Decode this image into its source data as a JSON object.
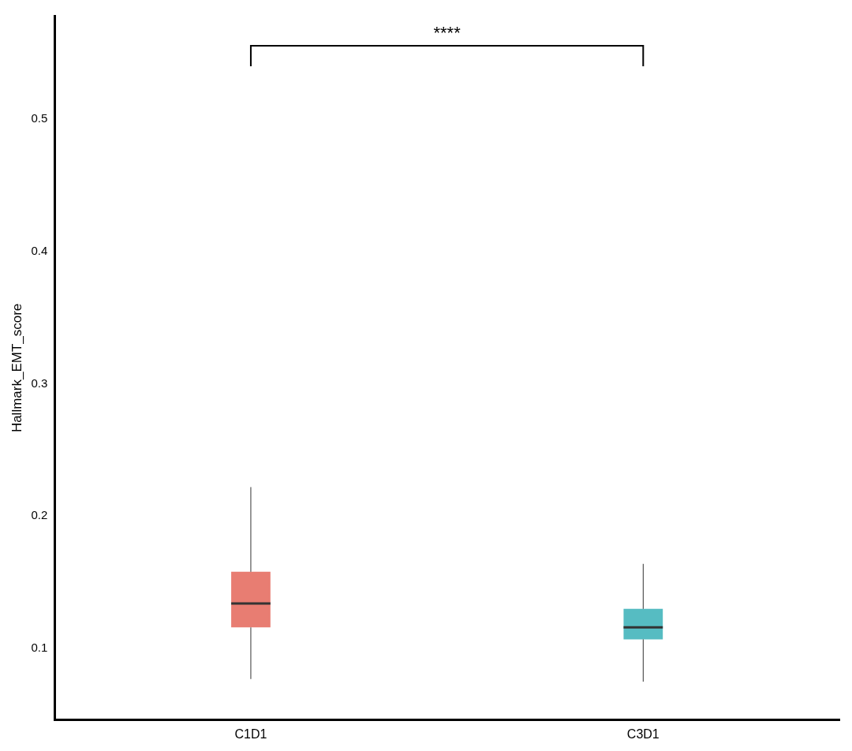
{
  "chart_data": {
    "type": "box",
    "ylabel": "Hallmark_EMT_score",
    "categories": [
      "C1D1",
      "C3D1"
    ],
    "colors": [
      "#e87d72",
      "#56bcc2"
    ],
    "boxes": [
      {
        "low": 0.077,
        "q1": 0.116,
        "median": 0.134,
        "q3": 0.158,
        "high": 0.222
      },
      {
        "low": 0.075,
        "q1": 0.107,
        "median": 0.116,
        "q3": 0.13,
        "high": 0.164
      }
    ],
    "ylim": [
      0.046,
      0.578
    ],
    "yticks": [
      0.1,
      0.2,
      0.3,
      0.4,
      0.5
    ],
    "grid": false,
    "legend": false,
    "annotations": [
      "****"
    ]
  }
}
